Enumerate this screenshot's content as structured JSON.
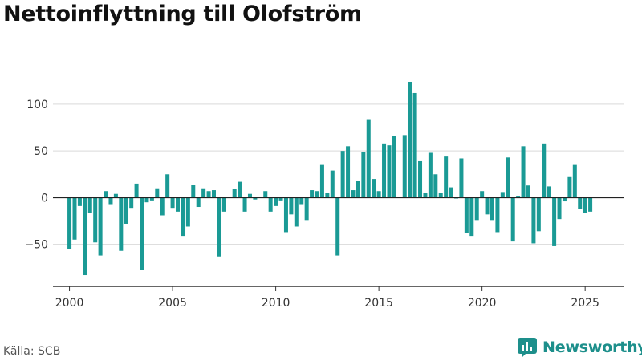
{
  "title": "Nettoinflyttning till Olofström",
  "source_label": "Källa: SCB",
  "brand": {
    "name": "Newsworthy",
    "icon": "newsworthy-logo-icon",
    "color": "#1d8f8b"
  },
  "colors": {
    "bar": "#1a9a95",
    "grid": "#d9d9d9",
    "zero_line": "#222222",
    "axis": "#333333",
    "tick_text": "#333333"
  },
  "chart_data": {
    "type": "bar",
    "title": "Nettoinflyttning till Olofström",
    "xlabel": "",
    "ylabel": "",
    "frequency": "quarterly",
    "x_start": 2000.0,
    "x_step": 0.25,
    "xlim": [
      1999.2,
      2026.9
    ],
    "ylim": [
      -95,
      130
    ],
    "x_ticks": [
      2000,
      2005,
      2010,
      2015,
      2020,
      2025
    ],
    "y_ticks": [
      -50,
      0,
      50,
      100
    ],
    "grid": true,
    "legend": "none",
    "values": [
      -55,
      -45,
      -9,
      -83,
      -16,
      -48,
      -62,
      7,
      -7,
      4,
      -57,
      -28,
      -11,
      15,
      -77,
      -5,
      -3,
      10,
      -19,
      25,
      -11,
      -15,
      -41,
      -31,
      14,
      -10,
      10,
      7,
      8,
      -63,
      -15,
      0,
      9,
      17,
      -15,
      4,
      -2,
      0,
      7,
      -15,
      -9,
      -3,
      -37,
      -18,
      -31,
      -7,
      -24,
      8,
      7,
      35,
      5,
      29,
      -62,
      50,
      55,
      8,
      18,
      49,
      84,
      20,
      7,
      58,
      56,
      66,
      0,
      67,
      124,
      112,
      39,
      5,
      48,
      25,
      5,
      44,
      11,
      -1,
      42,
      -38,
      -41,
      -24,
      7,
      -18,
      -24,
      -37,
      6,
      43,
      -47,
      2,
      55,
      13,
      -49,
      -36,
      58,
      12,
      -52,
      -23,
      -4,
      22,
      35,
      -12,
      -16,
      -15
    ]
  }
}
